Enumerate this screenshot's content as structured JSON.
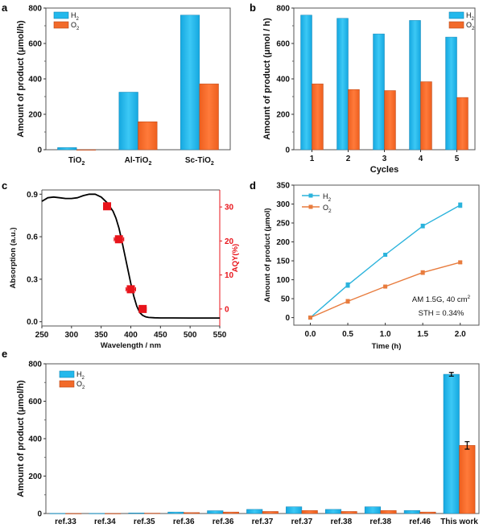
{
  "colors": {
    "h2": "#22b8ec",
    "o2": "#f26a2a",
    "h2_line": "#2bb3dc",
    "o2_line": "#e87c3e",
    "aqy": "#e8141b",
    "absorption": "#000000"
  },
  "chart_data": [
    {
      "id": "a",
      "panel_label": "a",
      "type": "bar",
      "title": "",
      "xlabel": "",
      "ylabel": "Amount of product (μmol/h)",
      "ylim": [
        0,
        800
      ],
      "yticks": [
        0,
        200,
        400,
        600,
        800
      ],
      "categories": [
        {
          "base": "TiO",
          "sub": "2"
        },
        {
          "base": "Al-TiO",
          "sub": "2"
        },
        {
          "base": "Sc-TiO",
          "sub": "2"
        }
      ],
      "series": [
        {
          "name": "H2",
          "legend_base": "H",
          "legend_sub": "2",
          "values": [
            12,
            325,
            760
          ]
        },
        {
          "name": "O2",
          "legend_base": "O",
          "legend_sub": "2",
          "values": [
            0,
            158,
            372
          ]
        }
      ],
      "legend": "top-left"
    },
    {
      "id": "b",
      "panel_label": "b",
      "type": "bar",
      "title": "",
      "xlabel": "Cycles",
      "ylabel": "Amount of product (μmol / h)",
      "ylim": [
        0,
        800
      ],
      "yticks": [
        0,
        200,
        400,
        600,
        800
      ],
      "categories": [
        "1",
        "2",
        "3",
        "4",
        "5"
      ],
      "series": [
        {
          "name": "H2",
          "legend_base": "H",
          "legend_sub": "2",
          "values": [
            760,
            742,
            654,
            730,
            636
          ]
        },
        {
          "name": "O2",
          "legend_base": "O",
          "legend_sub": "2",
          "values": [
            372,
            340,
            334,
            384,
            295
          ]
        }
      ],
      "legend": "top-right"
    },
    {
      "id": "c",
      "panel_label": "c",
      "type": "line",
      "title": "",
      "xlabel": "Wavelength / nm",
      "ylabel": "Absorption (a.u.)",
      "ylabel_right": "AQY(%)",
      "xlim": [
        250,
        550
      ],
      "xticks": [
        250,
        300,
        350,
        400,
        450,
        500,
        550
      ],
      "ylim": [
        -0.03,
        0.93
      ],
      "yticks": [
        0.0,
        0.3,
        0.6,
        0.9
      ],
      "ytick_labels": [
        "0.0",
        "0.3",
        "0.6",
        "0.9"
      ],
      "ylim_right": [
        -5,
        35
      ],
      "yticks_right": [
        0,
        10,
        20,
        30
      ],
      "series": [
        {
          "name": "Absorption",
          "x": [
            250,
            260,
            270,
            280,
            290,
            300,
            310,
            320,
            330,
            340,
            350,
            360,
            370,
            375,
            380,
            385,
            390,
            395,
            400,
            405,
            410,
            415,
            420,
            425,
            430,
            440,
            450,
            470,
            500,
            530,
            550
          ],
          "y": [
            0.85,
            0.875,
            0.88,
            0.875,
            0.87,
            0.87,
            0.875,
            0.89,
            0.9,
            0.9,
            0.88,
            0.84,
            0.78,
            0.73,
            0.66,
            0.57,
            0.47,
            0.37,
            0.27,
            0.18,
            0.11,
            0.065,
            0.045,
            0.035,
            0.03,
            0.028,
            0.027,
            0.027,
            0.026,
            0.026,
            0.026
          ]
        },
        {
          "name": "AQY",
          "axis": "right",
          "x": [
            360,
            380,
            400,
            420
          ],
          "y": [
            30.2,
            20.5,
            5.8,
            0.0
          ],
          "xerr": [
            5,
            8,
            8,
            6
          ],
          "marker": "square"
        }
      ]
    },
    {
      "id": "d",
      "panel_label": "d",
      "type": "line",
      "title": "",
      "xlabel": "Time (h)",
      "ylabel": "Amount of product (μmol)",
      "xlim": [
        -0.22,
        2.25
      ],
      "xticks": [
        0.0,
        0.5,
        1.0,
        1.5,
        2.0
      ],
      "xtick_labels": [
        "0.0",
        "0.5",
        "1.0",
        "1.5",
        "2.0"
      ],
      "ylim": [
        -20,
        350
      ],
      "yticks": [
        0,
        50,
        100,
        150,
        200,
        250,
        300,
        350
      ],
      "series": [
        {
          "name": "H2",
          "legend_base": "H",
          "legend_sub": "2",
          "x": [
            0,
            0.5,
            1.0,
            1.5,
            2.0
          ],
          "y": [
            0,
            86,
            166,
            242,
            297
          ],
          "yerr": [
            0,
            6,
            3,
            5,
            6
          ]
        },
        {
          "name": "O2",
          "legend_base": "O",
          "legend_sub": "2",
          "x": [
            0,
            0.5,
            1.0,
            1.5,
            2.0
          ],
          "y": [
            0,
            43,
            82,
            119,
            146
          ],
          "yerr": [
            0,
            5,
            2,
            5,
            3
          ]
        }
      ],
      "legend": "top-left",
      "annotations": [
        "AM 1.5G, 40 cm²",
        "STH = 0.34%"
      ]
    },
    {
      "id": "e",
      "panel_label": "e",
      "type": "bar",
      "title": "",
      "xlabel": "",
      "ylabel": "Amount of product (μmol/h)",
      "ylim": [
        0,
        800
      ],
      "yticks": [
        0,
        200,
        400,
        600,
        800
      ],
      "categories": [
        "ref.33",
        "ref.34",
        "ref.35",
        "ref.36",
        "ref.36",
        "ref.37",
        "ref.37",
        "ref.38",
        "ref.38",
        "ref.46",
        "This work"
      ],
      "series": [
        {
          "name": "H2",
          "legend_base": "H",
          "legend_sub": "2",
          "values": [
            1,
            1,
            3,
            8,
            15,
            22,
            36,
            22,
            36,
            16,
            744
          ],
          "err": [
            0,
            0,
            0,
            0,
            0,
            0,
            0,
            0,
            0,
            0,
            10
          ]
        },
        {
          "name": "O2",
          "legend_base": "O",
          "legend_sub": "2",
          "values": [
            0.5,
            0.5,
            2,
            5,
            8,
            11,
            16,
            11,
            16,
            8,
            364
          ],
          "err": [
            0,
            0,
            0,
            0,
            0,
            0,
            0,
            0,
            0,
            0,
            20
          ]
        }
      ],
      "legend": "top-left"
    }
  ]
}
